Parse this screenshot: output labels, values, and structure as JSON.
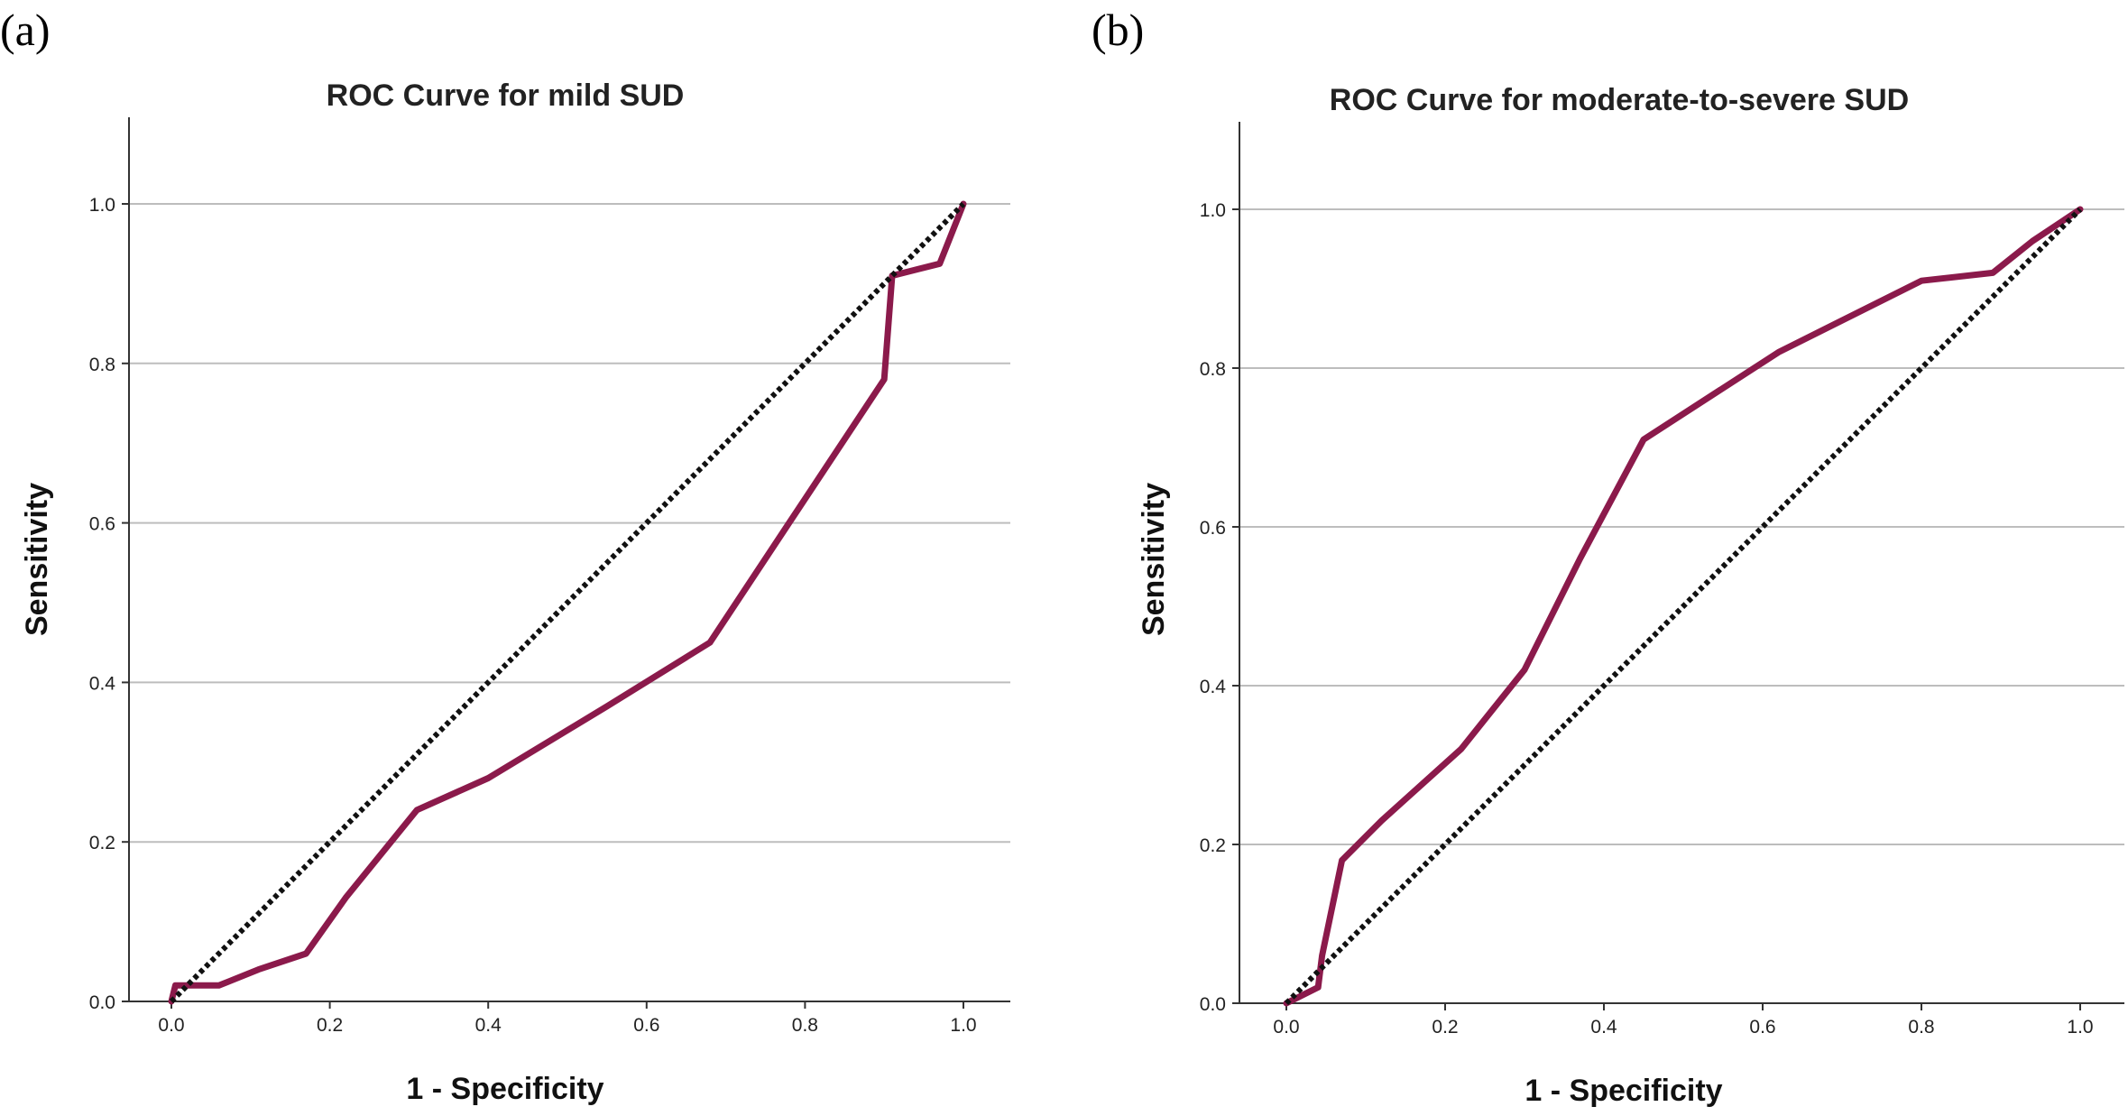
{
  "colors": {
    "curve": "#8B1A4B",
    "reference": "#111111",
    "grid": "#bdbdbd"
  },
  "chart_data": [
    {
      "type": "line",
      "panel_label": "(a)",
      "title": "ROC Curve for mild SUD",
      "xlabel": "1 - Specificity",
      "ylabel": "Sensitivity",
      "xlim": [
        0.0,
        1.0
      ],
      "ylim": [
        0.0,
        1.1
      ],
      "xticks": [
        "0.0",
        "0.2",
        "0.4",
        "0.6",
        "0.8",
        "1.0"
      ],
      "yticks": [
        "0.0",
        "0.2",
        "0.4",
        "0.6",
        "0.8",
        "1.0"
      ],
      "grid": "horizontal",
      "series": [
        {
          "name": "ROC",
          "x": [
            0.0,
            0.005,
            0.06,
            0.11,
            0.17,
            0.22,
            0.31,
            0.4,
            0.55,
            0.68,
            0.78,
            0.9,
            0.91,
            0.97,
            1.0
          ],
          "y": [
            0.0,
            0.02,
            0.02,
            0.04,
            0.06,
            0.13,
            0.24,
            0.28,
            0.37,
            0.45,
            0.6,
            0.78,
            0.91,
            0.925,
            1.0
          ]
        },
        {
          "name": "Reference Line",
          "x": [
            0.0,
            1.0
          ],
          "y": [
            0.0,
            1.0
          ]
        }
      ]
    },
    {
      "type": "line",
      "panel_label": "(b)",
      "title": "ROC Curve for moderate-to-severe SUD",
      "xlabel": "1 - Specificity",
      "ylabel": "Sensitivity",
      "xlim": [
        0.0,
        1.0
      ],
      "ylim": [
        0.0,
        1.1
      ],
      "xticks": [
        "0.0",
        "0.2",
        "0.4",
        "0.6",
        "0.8",
        "1.0"
      ],
      "yticks": [
        "0.0",
        "0.2",
        "0.4",
        "0.6",
        "0.8",
        "1.0"
      ],
      "grid": "horizontal",
      "series": [
        {
          "name": "ROC",
          "x": [
            0.0,
            0.04,
            0.045,
            0.07,
            0.12,
            0.22,
            0.3,
            0.37,
            0.45,
            0.62,
            0.8,
            0.89,
            0.94,
            1.0
          ],
          "y": [
            0.0,
            0.02,
            0.06,
            0.18,
            0.23,
            0.32,
            0.42,
            0.56,
            0.71,
            0.82,
            0.91,
            0.92,
            0.96,
            1.0
          ]
        },
        {
          "name": "Reference Line",
          "x": [
            0.0,
            1.0
          ],
          "y": [
            0.0,
            1.0
          ]
        }
      ]
    }
  ]
}
